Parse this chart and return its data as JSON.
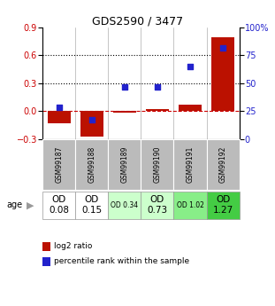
{
  "title": "GDS2590 / 3477",
  "samples": [
    "GSM99187",
    "GSM99188",
    "GSM99189",
    "GSM99190",
    "GSM99191",
    "GSM99192"
  ],
  "log2_ratio": [
    -0.13,
    -0.28,
    -0.02,
    0.02,
    0.07,
    0.8
  ],
  "percentile_rank": [
    28,
    17,
    47,
    47,
    65,
    82
  ],
  "ylim_left": [
    -0.3,
    0.9
  ],
  "ylim_right": [
    0,
    100
  ],
  "yticks_left": [
    -0.3,
    0.0,
    0.3,
    0.6,
    0.9
  ],
  "yticks_right": [
    0,
    25,
    50,
    75,
    100
  ],
  "yticklabels_right": [
    "0",
    "25",
    "50",
    "75",
    "100%"
  ],
  "bar_color": "#bb1100",
  "scatter_color": "#2222cc",
  "zero_line_color": "#cc0000",
  "sample_bg": "#bbbbbb",
  "age_labels": [
    "OD\n0.08",
    "OD\n0.15",
    "OD 0.34",
    "OD\n0.73",
    "OD 1.02",
    "OD\n1.27"
  ],
  "age_bg_colors": [
    "#ffffff",
    "#ffffff",
    "#ccffcc",
    "#ccffcc",
    "#88ee88",
    "#44cc44"
  ],
  "age_fontsize_small": [
    false,
    false,
    true,
    false,
    true,
    false
  ],
  "legend_labels": [
    "log2 ratio",
    "percentile rank within the sample"
  ]
}
